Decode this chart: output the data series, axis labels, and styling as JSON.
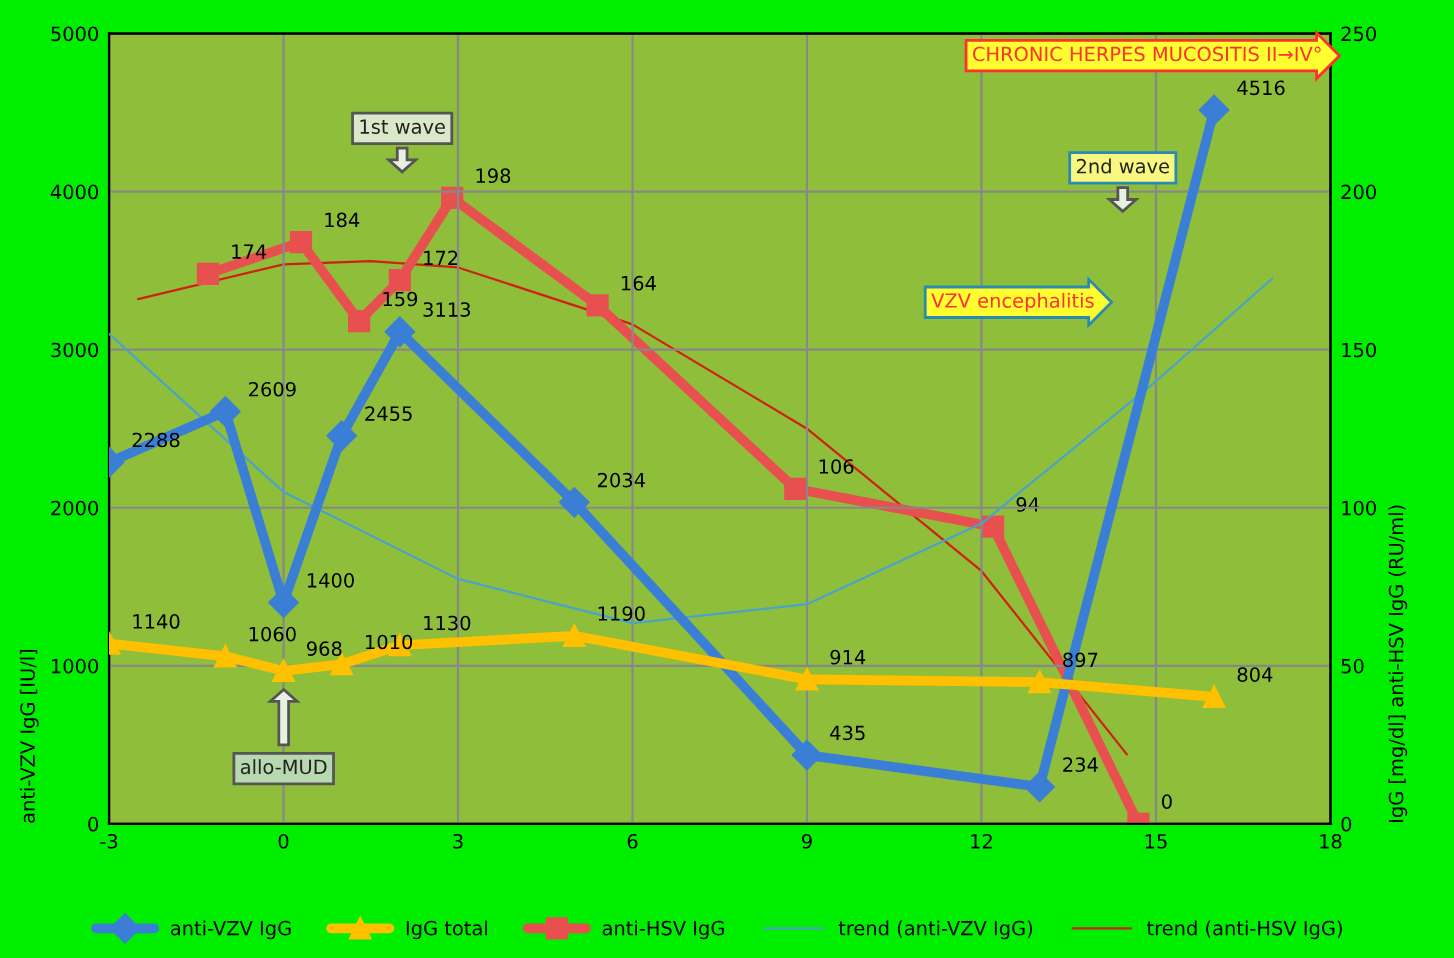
{
  "chart_data": {
    "type": "line",
    "xlim": [
      -3,
      18
    ],
    "xticks": [
      -3,
      0,
      3,
      6,
      9,
      12,
      15,
      18
    ],
    "ylim": [
      0,
      5000
    ],
    "yticks": [
      0,
      1000,
      2000,
      3000,
      4000,
      5000
    ],
    "y2lim": [
      0,
      250
    ],
    "y2ticks": [
      0,
      50,
      100,
      150,
      200,
      250
    ],
    "ylabel": "anti-VZV IgG [IU/l]",
    "y2label": "IgG [mg/dl] anti-HSV IgG (RU/ml)",
    "grid": true,
    "legend": "bottom",
    "series": [
      {
        "name": "anti-VZV IgG",
        "color": "#3a7fd5",
        "marker": "diamond",
        "x": [
          -3,
          -1,
          0,
          1,
          2,
          5,
          9,
          13,
          16
        ],
        "values": [
          2288,
          2609,
          1400,
          2455,
          3113,
          2034,
          435,
          234,
          4516
        ],
        "value_labels": [
          "2288",
          "2609",
          "1400",
          "2455",
          "3113",
          "2034",
          "435",
          "234",
          "4516"
        ]
      },
      {
        "name": "IgG total",
        "color": "#ffc000",
        "marker": "triangle",
        "x": [
          -3,
          -1,
          0,
          1,
          2,
          5,
          9,
          13,
          16
        ],
        "values": [
          1140,
          1060,
          968,
          1010,
          1130,
          1190,
          914,
          897,
          804
        ],
        "value_labels": [
          "1140",
          "1060",
          "968",
          "1010",
          "1130",
          "1190",
          "914",
          "897",
          "804"
        ]
      },
      {
        "name": "anti-HSV IgG",
        "color": "#e8504f",
        "marker": "square",
        "axis": "y2",
        "x": [
          -1.3,
          0.3,
          1.3,
          2.0,
          2.9,
          5.4,
          8.8,
          12.2,
          14.7
        ],
        "values": [
          174,
          184,
          159,
          172,
          198,
          164,
          106,
          94,
          0
        ],
        "value_labels": [
          "174",
          "184",
          "159",
          "172",
          "198",
          "164",
          "106",
          "94",
          "0"
        ]
      },
      {
        "name": "trend (anti-VZV IgG)",
        "color": "#4aa3c8",
        "marker": "none",
        "x": [
          -3,
          0,
          3,
          6,
          9,
          12,
          15,
          17
        ],
        "values": [
          3100,
          2100,
          1550,
          1270,
          1390,
          1900,
          2800,
          3450
        ]
      },
      {
        "name": "trend (anti-HSV IgG)",
        "color": "#d02010",
        "marker": "none",
        "axis": "y2",
        "x": [
          -2.5,
          0,
          1.5,
          3,
          6,
          9,
          12,
          14.5
        ],
        "values": [
          166,
          177,
          178,
          176,
          158,
          125,
          80,
          22
        ]
      }
    ],
    "annotations": [
      "1st wave",
      "2nd wave",
      "allo-MUD",
      "VZV encephalitis",
      "CHRONIC HERPES MUCOSITIS II→IV°"
    ]
  }
}
